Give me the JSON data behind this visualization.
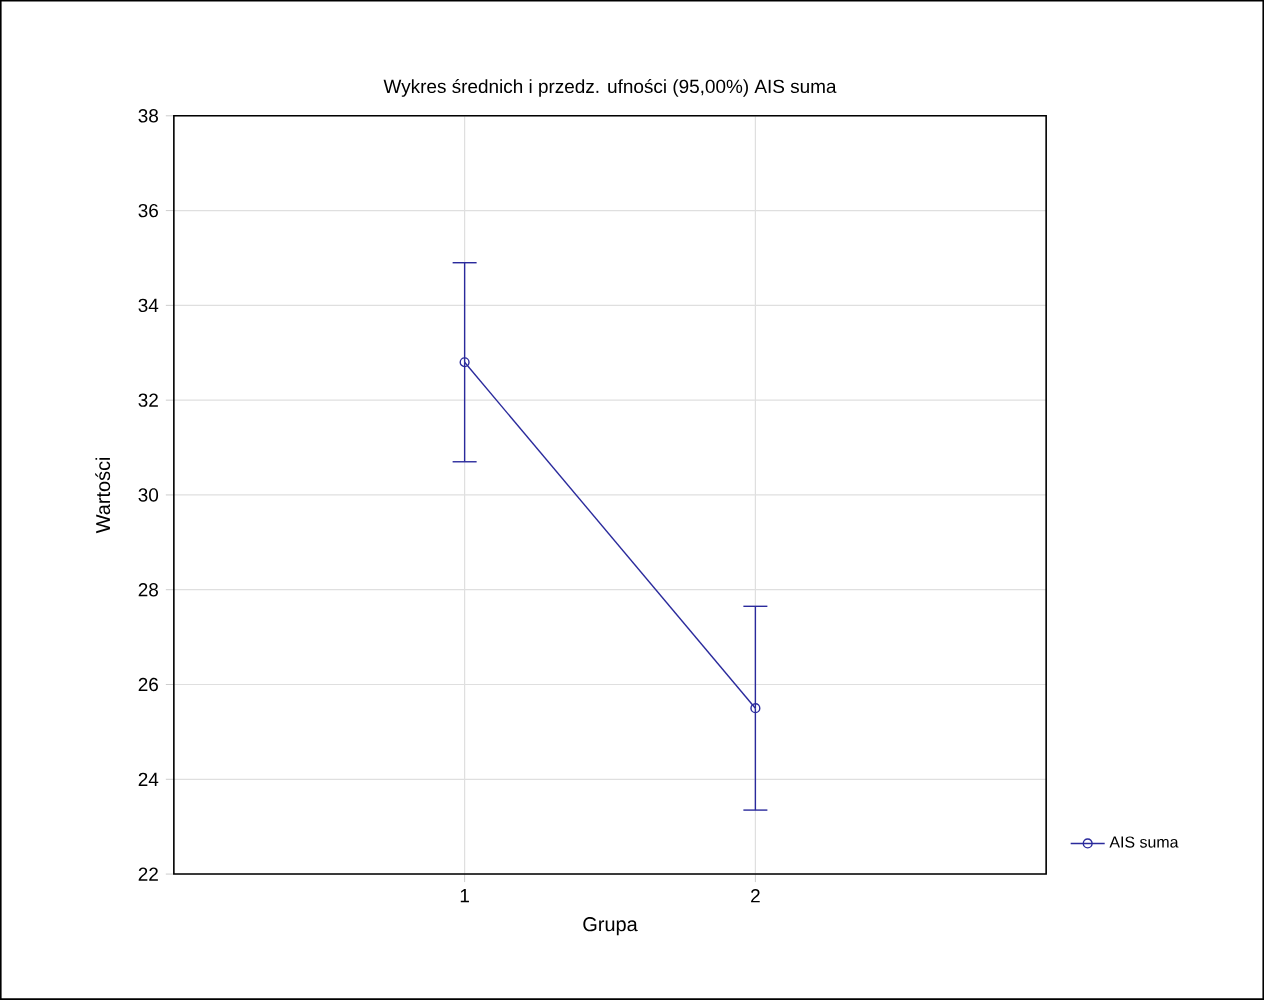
{
  "chart_data": {
    "type": "line",
    "title": "Wykres średnich i przedz. ufności (95,00%) AIS suma",
    "xlabel": "Grupa",
    "ylabel": "Wartości",
    "x": [
      1,
      2
    ],
    "xlim": [
      0,
      3
    ],
    "xticks": [
      1,
      2
    ],
    "ylim": [
      22,
      38
    ],
    "yticks": [
      22,
      24,
      26,
      28,
      30,
      32,
      34,
      36,
      38
    ],
    "series": [
      {
        "name": "AIS suma",
        "color": "#2a2a9c",
        "values": [
          32.8,
          25.5
        ],
        "errors": [
          2.1,
          2.15
        ]
      }
    ],
    "grid": true,
    "legend": "right",
    "marker": "circle",
    "line_style": "solid"
  }
}
